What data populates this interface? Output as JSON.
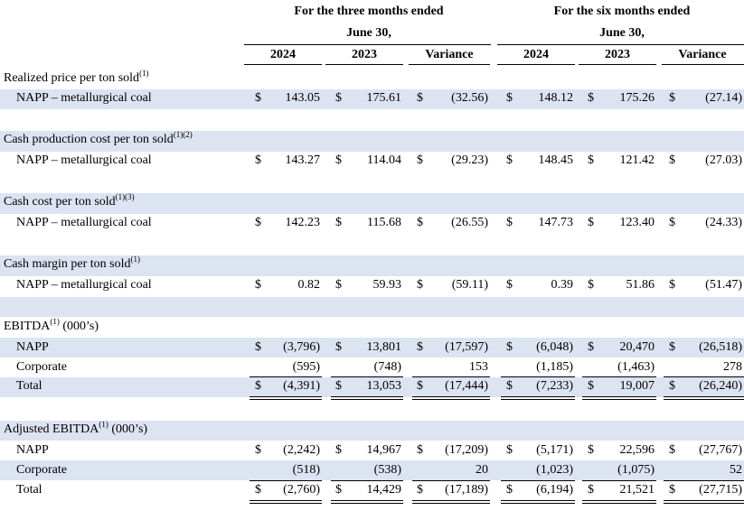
{
  "header": {
    "group1": [
      "For the three months ended",
      "June 30,"
    ],
    "group2": [
      "For the six months ended",
      "June 30,"
    ],
    "columns": [
      "2024",
      "2023",
      "Variance",
      "2024",
      "2023",
      "Variance"
    ]
  },
  "rows": [
    {
      "label": "Realized price per ton sold",
      "sup": "(1)"
    },
    {
      "label": "NAPP – metallurgical coal",
      "values": [
        [
          "$",
          "143.05"
        ],
        [
          "$",
          "175.61"
        ],
        [
          "$",
          "(32.56)"
        ],
        [
          "$",
          "148.12"
        ],
        [
          "$",
          "175.26"
        ],
        [
          "$",
          "(27.14)"
        ]
      ]
    },
    {
      "label": "Cash production cost per ton sold",
      "sup": "(1)(2)"
    },
    {
      "label": "NAPP – metallurgical coal",
      "values": [
        [
          "$",
          "143.27"
        ],
        [
          "$",
          "114.04"
        ],
        [
          "$",
          "(29.23)"
        ],
        [
          "$",
          "148.45"
        ],
        [
          "$",
          "121.42"
        ],
        [
          "$",
          "(27.03)"
        ]
      ]
    },
    {
      "label": "Cash cost per ton sold",
      "sup": "(1)(3)"
    },
    {
      "label": "NAPP – metallurgical coal",
      "values": [
        [
          "$",
          "142.23"
        ],
        [
          "$",
          "115.68"
        ],
        [
          "$",
          "(26.55)"
        ],
        [
          "$",
          "147.73"
        ],
        [
          "$",
          "123.40"
        ],
        [
          "$",
          "(24.33)"
        ]
      ]
    },
    {
      "label": "Cash margin per ton sold",
      "sup": "(1)"
    },
    {
      "label": "NAPP – metallurgical coal",
      "values": [
        [
          "$",
          "0.82"
        ],
        [
          "$",
          "59.93"
        ],
        [
          "$",
          "(59.11)"
        ],
        [
          "$",
          "0.39"
        ],
        [
          "$",
          "51.86"
        ],
        [
          "$",
          "(51.47)"
        ]
      ]
    },
    {
      "label": "EBITDA",
      "sup": "(1)",
      "suffix": " (000’s)"
    },
    {
      "label": "NAPP",
      "values": [
        [
          "$",
          "(3,796)"
        ],
        [
          "$",
          "13,801"
        ],
        [
          "$",
          "(17,597)"
        ],
        [
          "$",
          "(6,048)"
        ],
        [
          "$",
          "20,470"
        ],
        [
          "$",
          "(26,518)"
        ]
      ]
    },
    {
      "label": "Corporate",
      "values": [
        [
          "",
          "(595)"
        ],
        [
          "",
          "(748)"
        ],
        [
          "",
          "153"
        ],
        [
          "",
          "(1,185)"
        ],
        [
          "",
          "(1,463)"
        ],
        [
          "",
          "278"
        ]
      ]
    },
    {
      "label": "Total",
      "values": [
        [
          "$",
          "(4,391)"
        ],
        [
          "$",
          "13,053"
        ],
        [
          "$",
          "(17,444)"
        ],
        [
          "$",
          "(7,233)"
        ],
        [
          "$",
          "19,007"
        ],
        [
          "$",
          "(26,240)"
        ]
      ]
    },
    {
      "label": "Adjusted EBITDA",
      "sup": "(1)",
      "suffix": " (000’s)"
    },
    {
      "label": "NAPP",
      "values": [
        [
          "$",
          "(2,242)"
        ],
        [
          "$",
          "14,967"
        ],
        [
          "$",
          "(17,209)"
        ],
        [
          "$",
          "(5,171)"
        ],
        [
          "$",
          "22,596"
        ],
        [
          "$",
          "(27,767)"
        ]
      ]
    },
    {
      "label": "Corporate",
      "values": [
        [
          "",
          "(518)"
        ],
        [
          "",
          "(538)"
        ],
        [
          "",
          "20"
        ],
        [
          "",
          "(1,023)"
        ],
        [
          "",
          "(1,075)"
        ],
        [
          "",
          "52"
        ]
      ]
    },
    {
      "label": "Total",
      "values": [
        [
          "$",
          "(2,760)"
        ],
        [
          "$",
          "14,429"
        ],
        [
          "$",
          "(17,189)"
        ],
        [
          "$",
          "(6,194)"
        ],
        [
          "$",
          "21,521"
        ],
        [
          "$",
          "(27,715)"
        ]
      ]
    }
  ]
}
